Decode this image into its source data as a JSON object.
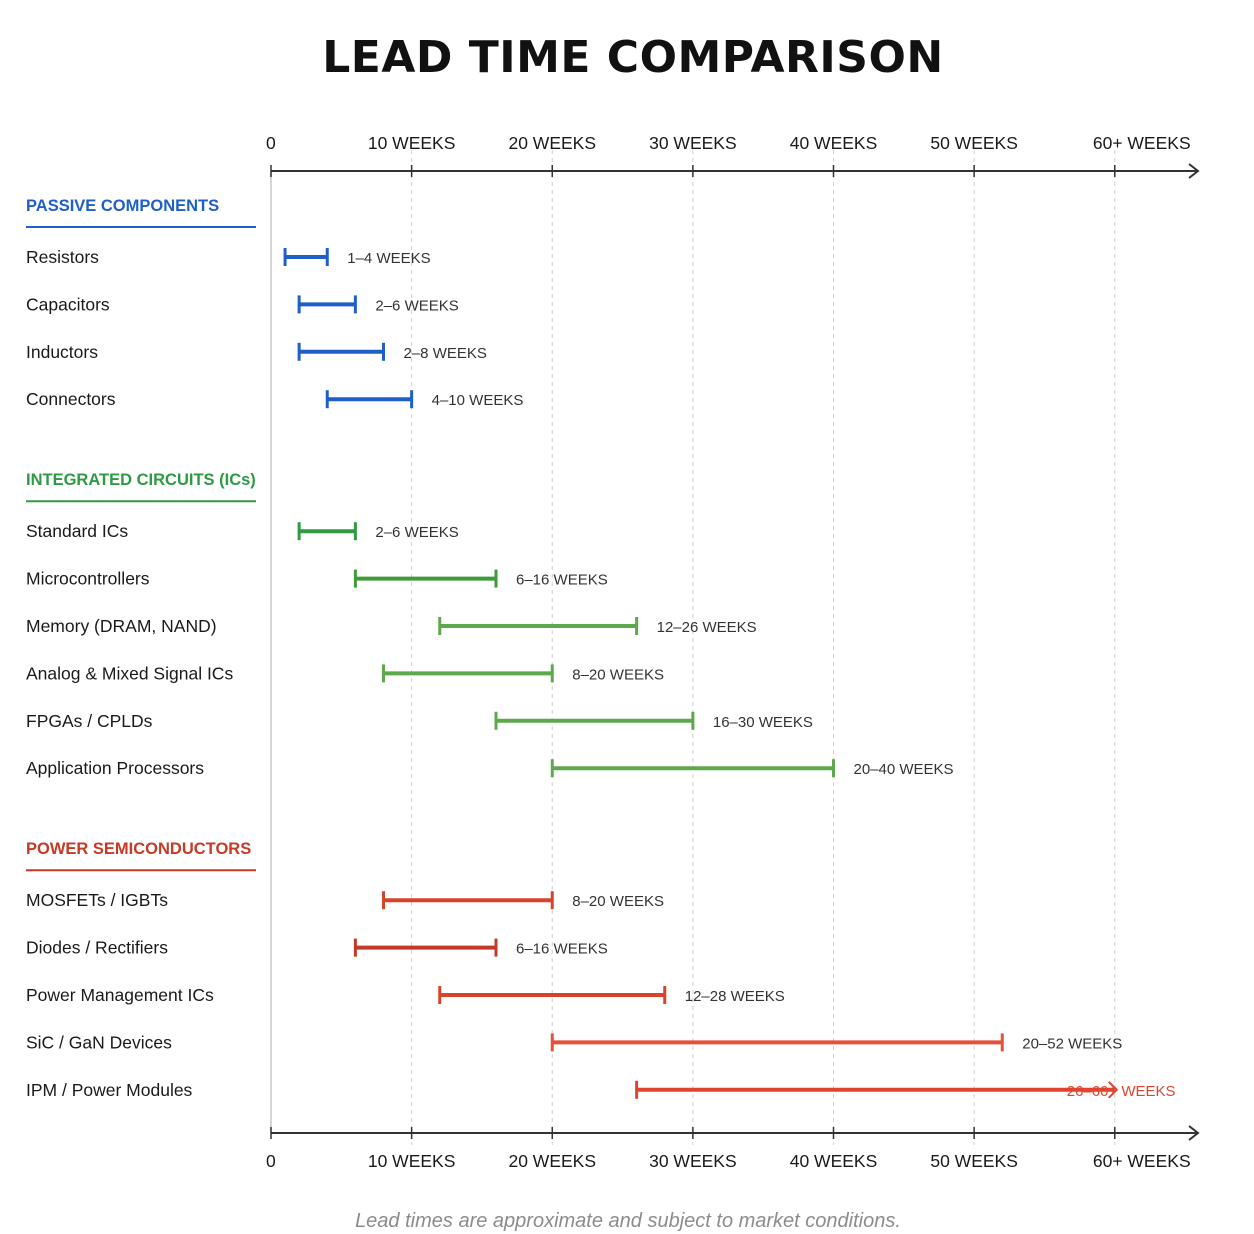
{
  "title": "LEAD TIME COMPARISON",
  "footnote": "Lead times are approximate and subject to market conditions.",
  "chart_data": {
    "type": "range-bar",
    "x_ticks": [
      {
        "value": 0,
        "label": "0"
      },
      {
        "value": 10,
        "label": "10 WEEKS"
      },
      {
        "value": 20,
        "label": "20 WEEKS"
      },
      {
        "value": 30,
        "label": "30 WEEKS"
      },
      {
        "value": 40,
        "label": "40 WEEKS"
      },
      {
        "value": 50,
        "label": "50 WEEKS"
      },
      {
        "value": 60,
        "label": "60+  WEEKS"
      }
    ],
    "xlim": [
      0,
      64
    ],
    "grid": true,
    "groups": [
      {
        "name": "PASSIVE COMPONENTS",
        "color": "#1f5fc8",
        "items": [
          {
            "label": "Resistors",
            "min": 1,
            "max": 4,
            "range_label": "1–4 WEEKS",
            "color": "#1f5fc8"
          },
          {
            "label": "Capacitors",
            "min": 2,
            "max": 6,
            "range_label": "2–6 WEEKS",
            "color": "#1f5fc8"
          },
          {
            "label": "Inductors",
            "min": 2,
            "max": 8,
            "range_label": "2–8 WEEKS",
            "color": "#1f5fc8"
          },
          {
            "label": "Connectors",
            "min": 4,
            "max": 10,
            "range_label": "4–10 WEEKS",
            "color": "#1f5fc8"
          }
        ]
      },
      {
        "name": "INTEGRATED CIRCUITS (ICs)",
        "color": "#2e9a43",
        "items": [
          {
            "label": "Standard ICs",
            "min": 2,
            "max": 6,
            "range_label": "2–6 WEEKS",
            "color": "#2e9a43"
          },
          {
            "label": "Microcontrollers",
            "min": 6,
            "max": 16,
            "range_label": "6–16 WEEKS",
            "color": "#3f9a3a"
          },
          {
            "label": "Memory (DRAM, NAND)",
            "min": 12,
            "max": 26,
            "range_label": "12–26 WEEKS",
            "color": "#5ea84e"
          },
          {
            "label": "Analog & Mixed Signal ICs",
            "min": 8,
            "max": 20,
            "range_label": "8–20 WEEKS",
            "color": "#5ea84e"
          },
          {
            "label": "FPGAs / CPLDs",
            "min": 16,
            "max": 30,
            "range_label": "16–30 WEEKS",
            "color": "#5ea84e"
          },
          {
            "label": "Application Processors",
            "min": 20,
            "max": 40,
            "range_label": "20–40 WEEKS",
            "color": "#5ea84e"
          }
        ]
      },
      {
        "name": "POWER SEMICONDUCTORS",
        "color": "#c63a26",
        "items": [
          {
            "label": "MOSFETs / IGBTs",
            "min": 8,
            "max": 20,
            "range_label": "8–20 WEEKS",
            "color": "#d9432b"
          },
          {
            "label": "Diodes / Rectifiers",
            "min": 6,
            "max": 16,
            "range_label": "6–16 WEEKS",
            "color": "#c23a26"
          },
          {
            "label": "Power Management ICs",
            "min": 12,
            "max": 28,
            "range_label": "12–28 WEEKS",
            "color": "#d9432b"
          },
          {
            "label": "SiC / GaN Devices",
            "min": 20,
            "max": 52,
            "range_label": "20–52 WEEKS",
            "color": "#e4503a"
          },
          {
            "label": "IPM / Power Modules",
            "min": 26,
            "max": 60,
            "range_label": "26–60+ WEEKS",
            "color": "#e0442f",
            "open_ended": true
          }
        ]
      }
    ]
  }
}
